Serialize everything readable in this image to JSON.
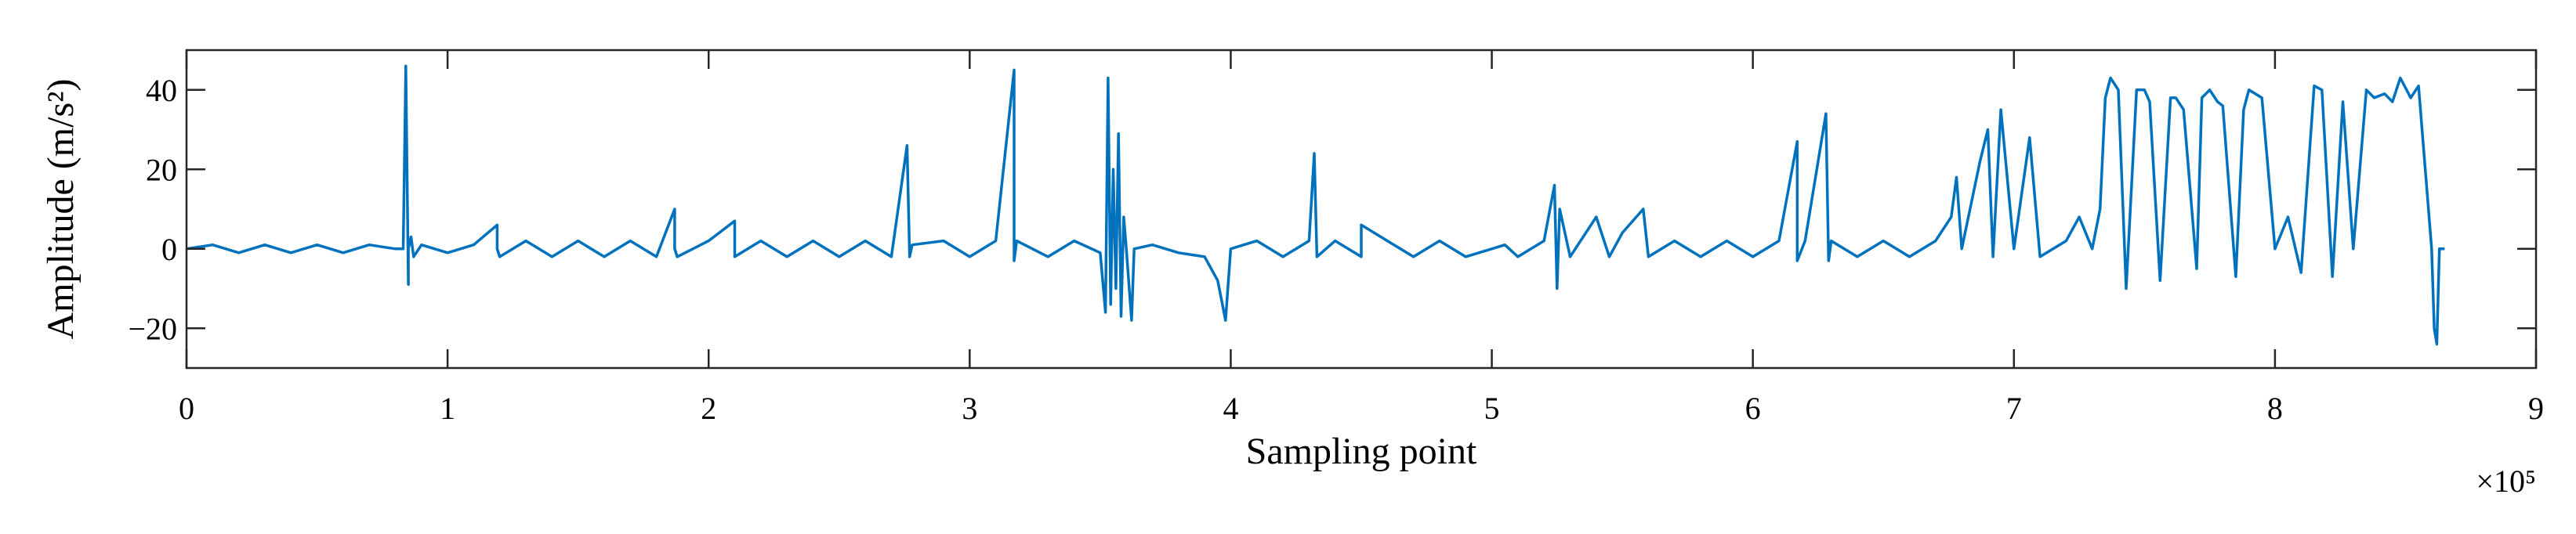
{
  "chart_data": {
    "type": "line",
    "title": "",
    "xlabel": "Sampling point",
    "ylabel": "Amplitude (m/s²)",
    "x_exponent_label": "×10⁵",
    "xlim": [
      0,
      9
    ],
    "ylim": [
      -30,
      50
    ],
    "xticks": [
      0,
      1,
      2,
      3,
      4,
      5,
      6,
      7,
      8,
      9
    ],
    "xtick_labels": [
      "0",
      "1",
      "2",
      "3",
      "4",
      "5",
      "6",
      "7",
      "8",
      "9"
    ],
    "yticks": [
      -20,
      0,
      20,
      40
    ],
    "ytick_labels": [
      "−20",
      "0",
      "20",
      "40"
    ],
    "grid": false,
    "line_color": "#0072BD",
    "series": [
      {
        "x": [
          0,
          0.1,
          0.2,
          0.3,
          0.4,
          0.5,
          0.6,
          0.7,
          0.8,
          0.83,
          0.84,
          0.85,
          0.85,
          0.86,
          0.87,
          0.9,
          1.0,
          1.1,
          1.19,
          1.19,
          1.2,
          1.3,
          1.4,
          1.5,
          1.6,
          1.7,
          1.8,
          1.87,
          1.87,
          1.88,
          2.0,
          2.1,
          2.1,
          2.2,
          2.3,
          2.4,
          2.5,
          2.6,
          2.7,
          2.76,
          2.77,
          2.78,
          2.9,
          3.0,
          3.1,
          3.17,
          3.17,
          3.18,
          3.3,
          3.4,
          3.5,
          3.52,
          3.53,
          3.54,
          3.55,
          3.56,
          3.57,
          3.58,
          3.59,
          3.6,
          3.62,
          3.63,
          3.7,
          3.8,
          3.9,
          3.95,
          3.98,
          4.0,
          4.1,
          4.2,
          4.3,
          4.32,
          4.33,
          4.4,
          4.5,
          4.5,
          4.6,
          4.7,
          4.8,
          4.9,
          5.0,
          5.05,
          5.1,
          5.2,
          5.24,
          5.25,
          5.26,
          5.3,
          5.4,
          5.45,
          5.5,
          5.58,
          5.6,
          5.7,
          5.8,
          5.9,
          6.0,
          6.1,
          6.17,
          6.17,
          6.2,
          6.28,
          6.29,
          6.3,
          6.4,
          6.5,
          6.6,
          6.7,
          6.76,
          6.78,
          6.8,
          6.87,
          6.9,
          6.92,
          6.95,
          7.0,
          7.06,
          7.1,
          7.2,
          7.25,
          7.3,
          7.33,
          7.35,
          7.37,
          7.4,
          7.43,
          7.47,
          7.5,
          7.52,
          7.56,
          7.6,
          7.62,
          7.65,
          7.7,
          7.72,
          7.75,
          7.78,
          7.8,
          7.85,
          7.88,
          7.9,
          7.95,
          8.0,
          8.05,
          8.1,
          8.15,
          8.18,
          8.22,
          8.26,
          8.3,
          8.35,
          8.38,
          8.42,
          8.45,
          8.48,
          8.52,
          8.55,
          8.6,
          8.61,
          8.62,
          8.63,
          8.65
        ],
        "y": [
          0,
          1,
          -1,
          1,
          -1,
          1,
          -1,
          1,
          0,
          0,
          46,
          -9,
          0,
          3,
          -2,
          1,
          -1,
          1,
          6,
          0,
          -2,
          2,
          -2,
          2,
          -2,
          2,
          -2,
          10,
          0,
          -2,
          2,
          7,
          -2,
          2,
          -2,
          2,
          -2,
          2,
          -2,
          26,
          -2,
          1,
          2,
          -2,
          2,
          45,
          -3,
          2,
          -2,
          2,
          -1,
          -16,
          43,
          -14,
          20,
          -10,
          29,
          -17,
          8,
          0,
          -18,
          0,
          1,
          -1,
          -2,
          -8,
          -18,
          0,
          2,
          -2,
          2,
          24,
          -2,
          2,
          -2,
          6,
          2,
          -2,
          2,
          -2,
          0,
          1,
          -2,
          2,
          16,
          -10,
          10,
          -2,
          8,
          -2,
          4,
          10,
          -2,
          2,
          -2,
          2,
          -2,
          2,
          27,
          -3,
          2,
          34,
          -3,
          2,
          -2,
          2,
          -2,
          2,
          8,
          18,
          0,
          22,
          30,
          -2,
          35,
          0,
          28,
          -2,
          2,
          8,
          0,
          10,
          38,
          43,
          40,
          -10,
          40,
          40,
          37,
          -8,
          38,
          38,
          35,
          -5,
          38,
          40,
          37,
          36,
          -7,
          35,
          40,
          38,
          0,
          8,
          -6,
          41,
          40,
          -7,
          37,
          0,
          40,
          38,
          39,
          37,
          43,
          38,
          41,
          0,
          -20,
          -24,
          0,
          0
        ]
      }
    ]
  }
}
